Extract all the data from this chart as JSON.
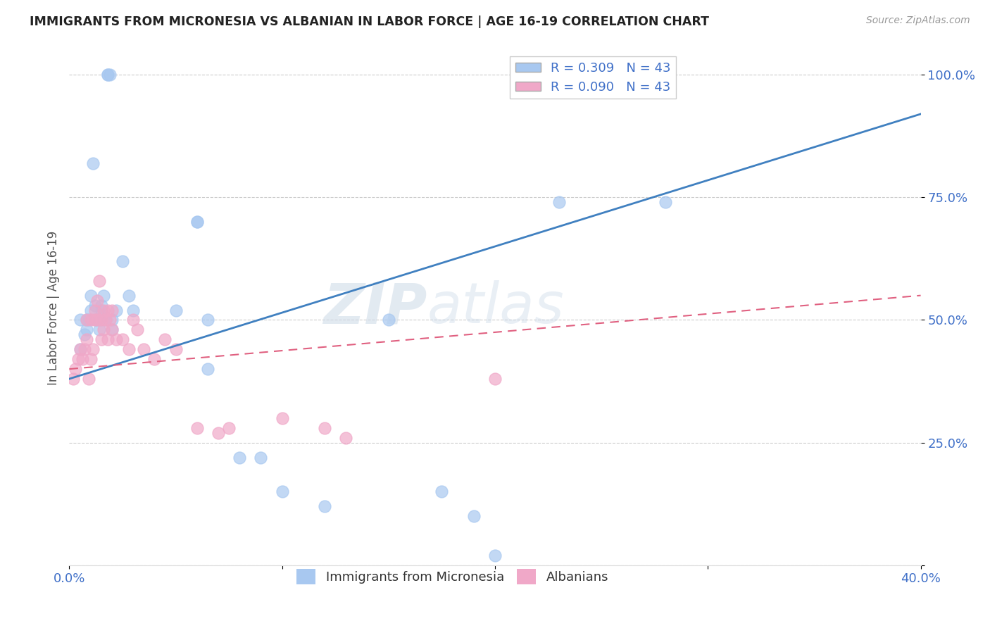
{
  "title": "IMMIGRANTS FROM MICRONESIA VS ALBANIAN IN LABOR FORCE | AGE 16-19 CORRELATION CHART",
  "source": "Source: ZipAtlas.com",
  "ylabel": "In Labor Force | Age 16-19",
  "xlim": [
    0.0,
    0.4
  ],
  "ylim": [
    0.0,
    1.05
  ],
  "micronesia_R": 0.309,
  "micronesia_N": 43,
  "albanian_R": 0.09,
  "albanian_N": 43,
  "micronesia_color": "#a8c8f0",
  "albanian_color": "#f0a8c8",
  "micronesia_line_color": "#4080c0",
  "albanian_line_color": "#e06080",
  "legend_color": "#4070c8",
  "watermark_zip": "ZIP",
  "watermark_atlas": "atlas",
  "background_color": "#ffffff",
  "grid_color": "#cccccc",
  "mic_x": [
    0.005,
    0.005,
    0.007,
    0.008,
    0.008,
    0.009,
    0.01,
    0.01,
    0.011,
    0.012,
    0.012,
    0.013,
    0.014,
    0.014,
    0.015,
    0.015,
    0.016,
    0.016,
    0.017,
    0.018,
    0.018,
    0.019,
    0.02,
    0.02,
    0.022,
    0.025,
    0.028,
    0.03,
    0.05,
    0.06,
    0.06,
    0.065,
    0.065,
    0.08,
    0.09,
    0.1,
    0.12,
    0.15,
    0.175,
    0.19,
    0.2,
    0.23,
    0.28
  ],
  "mic_y": [
    0.44,
    0.5,
    0.47,
    0.48,
    0.5,
    0.5,
    0.52,
    0.55,
    0.82,
    0.5,
    0.53,
    0.5,
    0.48,
    0.5,
    0.52,
    0.53,
    0.51,
    0.55,
    0.5,
    1.0,
    1.0,
    1.0,
    0.48,
    0.5,
    0.52,
    0.62,
    0.55,
    0.52,
    0.52,
    0.7,
    0.7,
    0.5,
    0.4,
    0.22,
    0.22,
    0.15,
    0.12,
    0.5,
    0.15,
    0.1,
    0.02,
    0.74,
    0.74
  ],
  "alb_x": [
    0.002,
    0.003,
    0.004,
    0.005,
    0.006,
    0.007,
    0.008,
    0.008,
    0.009,
    0.01,
    0.01,
    0.011,
    0.012,
    0.012,
    0.013,
    0.013,
    0.014,
    0.015,
    0.015,
    0.016,
    0.016,
    0.017,
    0.018,
    0.018,
    0.019,
    0.02,
    0.02,
    0.022,
    0.025,
    0.028,
    0.03,
    0.032,
    0.035,
    0.04,
    0.045,
    0.05,
    0.06,
    0.07,
    0.075,
    0.1,
    0.12,
    0.13,
    0.2
  ],
  "alb_y": [
    0.38,
    0.4,
    0.42,
    0.44,
    0.42,
    0.44,
    0.46,
    0.5,
    0.38,
    0.42,
    0.5,
    0.44,
    0.5,
    0.52,
    0.5,
    0.54,
    0.58,
    0.46,
    0.5,
    0.48,
    0.52,
    0.5,
    0.46,
    0.52,
    0.5,
    0.48,
    0.52,
    0.46,
    0.46,
    0.44,
    0.5,
    0.48,
    0.44,
    0.42,
    0.46,
    0.44,
    0.28,
    0.27,
    0.28,
    0.3,
    0.28,
    0.26,
    0.38
  ]
}
